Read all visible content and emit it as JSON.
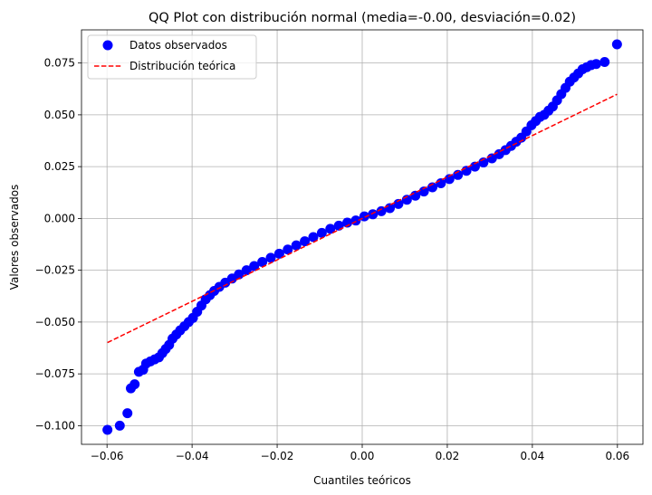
{
  "chart_data": {
    "type": "scatter",
    "title": "QQ Plot con distribución normal (media=-0.00, desviación=0.02)",
    "xlabel": "Cuantiles teóricos",
    "ylabel": "Valores observados",
    "xlim": [
      -0.066,
      0.066
    ],
    "ylim": [
      -0.109,
      0.091
    ],
    "xticks": [
      -0.06,
      -0.04,
      -0.02,
      0.0,
      0.02,
      0.04,
      0.06
    ],
    "xtick_labels": [
      "−0.06",
      "−0.04",
      "−0.02",
      "0.00",
      "0.02",
      "0.04",
      "0.06"
    ],
    "yticks": [
      -0.1,
      -0.075,
      -0.05,
      -0.025,
      0.0,
      0.025,
      0.05,
      0.075
    ],
    "ytick_labels": [
      "−0.100",
      "−0.075",
      "−0.050",
      "−0.025",
      "0.000",
      "0.025",
      "0.050",
      "0.075"
    ],
    "grid": true,
    "legend_position": "top-left",
    "series": [
      {
        "name": "Datos observados",
        "kind": "scatter",
        "color": "#0000ff",
        "points": [
          [
            -0.0599,
            -0.102
          ],
          [
            -0.057,
            -0.1
          ],
          [
            -0.0552,
            -0.094
          ],
          [
            -0.0544,
            -0.082
          ],
          [
            -0.0535,
            -0.08
          ],
          [
            -0.0525,
            -0.074
          ],
          [
            -0.0515,
            -0.073
          ],
          [
            -0.0508,
            -0.07
          ],
          [
            -0.0498,
            -0.069
          ],
          [
            -0.0488,
            -0.068
          ],
          [
            -0.0478,
            -0.067
          ],
          [
            -0.047,
            -0.065
          ],
          [
            -0.0462,
            -0.063
          ],
          [
            -0.0454,
            -0.061
          ],
          [
            -0.0446,
            -0.058
          ],
          [
            -0.0437,
            -0.056
          ],
          [
            -0.0428,
            -0.054
          ],
          [
            -0.0418,
            -0.052
          ],
          [
            -0.0408,
            -0.05
          ],
          [
            -0.0398,
            -0.048
          ],
          [
            -0.0388,
            -0.045
          ],
          [
            -0.0378,
            -0.042
          ],
          [
            -0.0368,
            -0.039
          ],
          [
            -0.0358,
            -0.037
          ],
          [
            -0.0348,
            -0.035
          ],
          [
            -0.0336,
            -0.033
          ],
          [
            -0.0322,
            -0.031
          ],
          [
            -0.0306,
            -0.029
          ],
          [
            -0.029,
            -0.027
          ],
          [
            -0.0272,
            -0.025
          ],
          [
            -0.0254,
            -0.023
          ],
          [
            -0.0235,
            -0.021
          ],
          [
            -0.0215,
            -0.019
          ],
          [
            -0.0195,
            -0.017
          ],
          [
            -0.0175,
            -0.015
          ],
          [
            -0.0155,
            -0.013
          ],
          [
            -0.0135,
            -0.011
          ],
          [
            -0.0115,
            -0.009
          ],
          [
            -0.0095,
            -0.007
          ],
          [
            -0.0075,
            -0.005
          ],
          [
            -0.0055,
            -0.0035
          ],
          [
            -0.0035,
            -0.002
          ],
          [
            -0.0015,
            -0.001
          ],
          [
            0.0005,
            0.001
          ],
          [
            0.0025,
            0.002
          ],
          [
            0.0045,
            0.0035
          ],
          [
            0.0065,
            0.005
          ],
          [
            0.0085,
            0.007
          ],
          [
            0.0105,
            0.009
          ],
          [
            0.0125,
            0.011
          ],
          [
            0.0145,
            0.013
          ],
          [
            0.0165,
            0.015
          ],
          [
            0.0185,
            0.017
          ],
          [
            0.0205,
            0.019
          ],
          [
            0.0225,
            0.021
          ],
          [
            0.0245,
            0.023
          ],
          [
            0.0265,
            0.025
          ],
          [
            0.0285,
            0.027
          ],
          [
            0.0305,
            0.029
          ],
          [
            0.0322,
            0.031
          ],
          [
            0.0337,
            0.033
          ],
          [
            0.035,
            0.035
          ],
          [
            0.0362,
            0.037
          ],
          [
            0.0374,
            0.039
          ],
          [
            0.0386,
            0.042
          ],
          [
            0.0398,
            0.045
          ],
          [
            0.0408,
            0.047
          ],
          [
            0.0418,
            0.049
          ],
          [
            0.0428,
            0.05
          ],
          [
            0.0438,
            0.052
          ],
          [
            0.0448,
            0.054
          ],
          [
            0.0458,
            0.057
          ],
          [
            0.0468,
            0.06
          ],
          [
            0.0478,
            0.063
          ],
          [
            0.0488,
            0.066
          ],
          [
            0.0498,
            0.068
          ],
          [
            0.0508,
            0.07
          ],
          [
            0.0518,
            0.072
          ],
          [
            0.0528,
            0.073
          ],
          [
            0.0538,
            0.074
          ],
          [
            0.055,
            0.0745
          ],
          [
            0.057,
            0.0755
          ],
          [
            0.0599,
            0.084
          ]
        ]
      },
      {
        "name": "Distribución teórica",
        "kind": "line",
        "style": "dashed",
        "color": "#ff0000",
        "points": [
          [
            -0.0599,
            -0.0599
          ],
          [
            0.0599,
            0.0599
          ]
        ]
      }
    ]
  }
}
